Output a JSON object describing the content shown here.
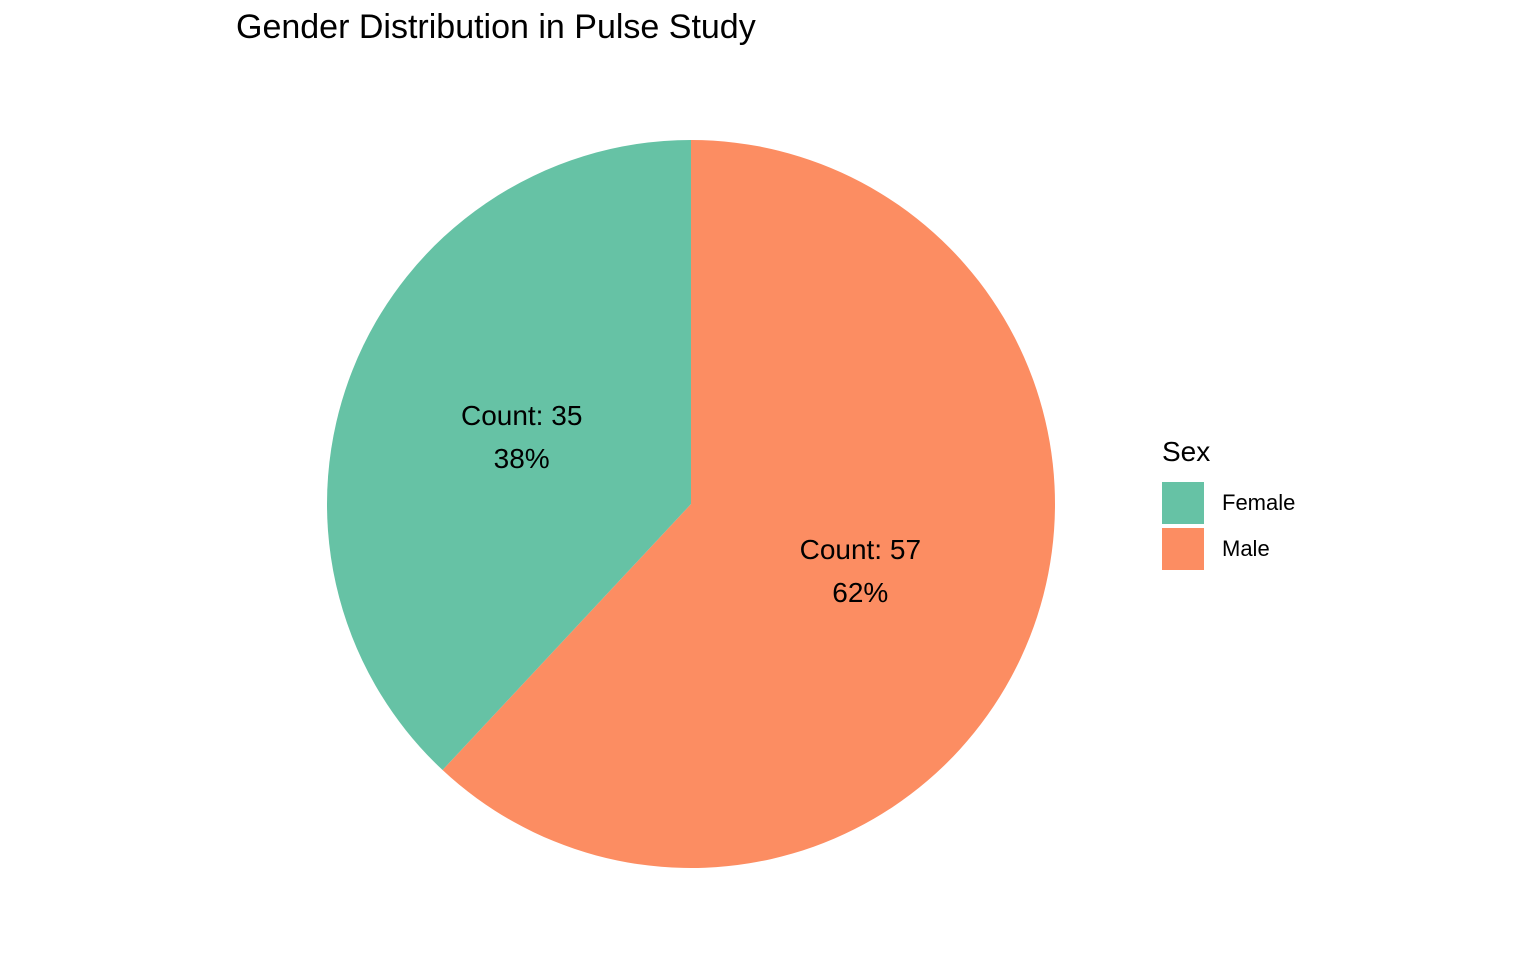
{
  "chart_data": {
    "type": "pie",
    "title": "Gender Distribution in Pulse Study",
    "legend": {
      "title": "Sex",
      "position": "right"
    },
    "slices": [
      {
        "category": "Female",
        "value": 35,
        "percent": 38,
        "color": "#66c2a5",
        "count_label": "Count: 35",
        "percent_label": "38%"
      },
      {
        "category": "Male",
        "value": 57,
        "percent": 62,
        "color": "#fc8d62",
        "count_label": "Count: 57",
        "percent_label": "62%"
      }
    ]
  }
}
